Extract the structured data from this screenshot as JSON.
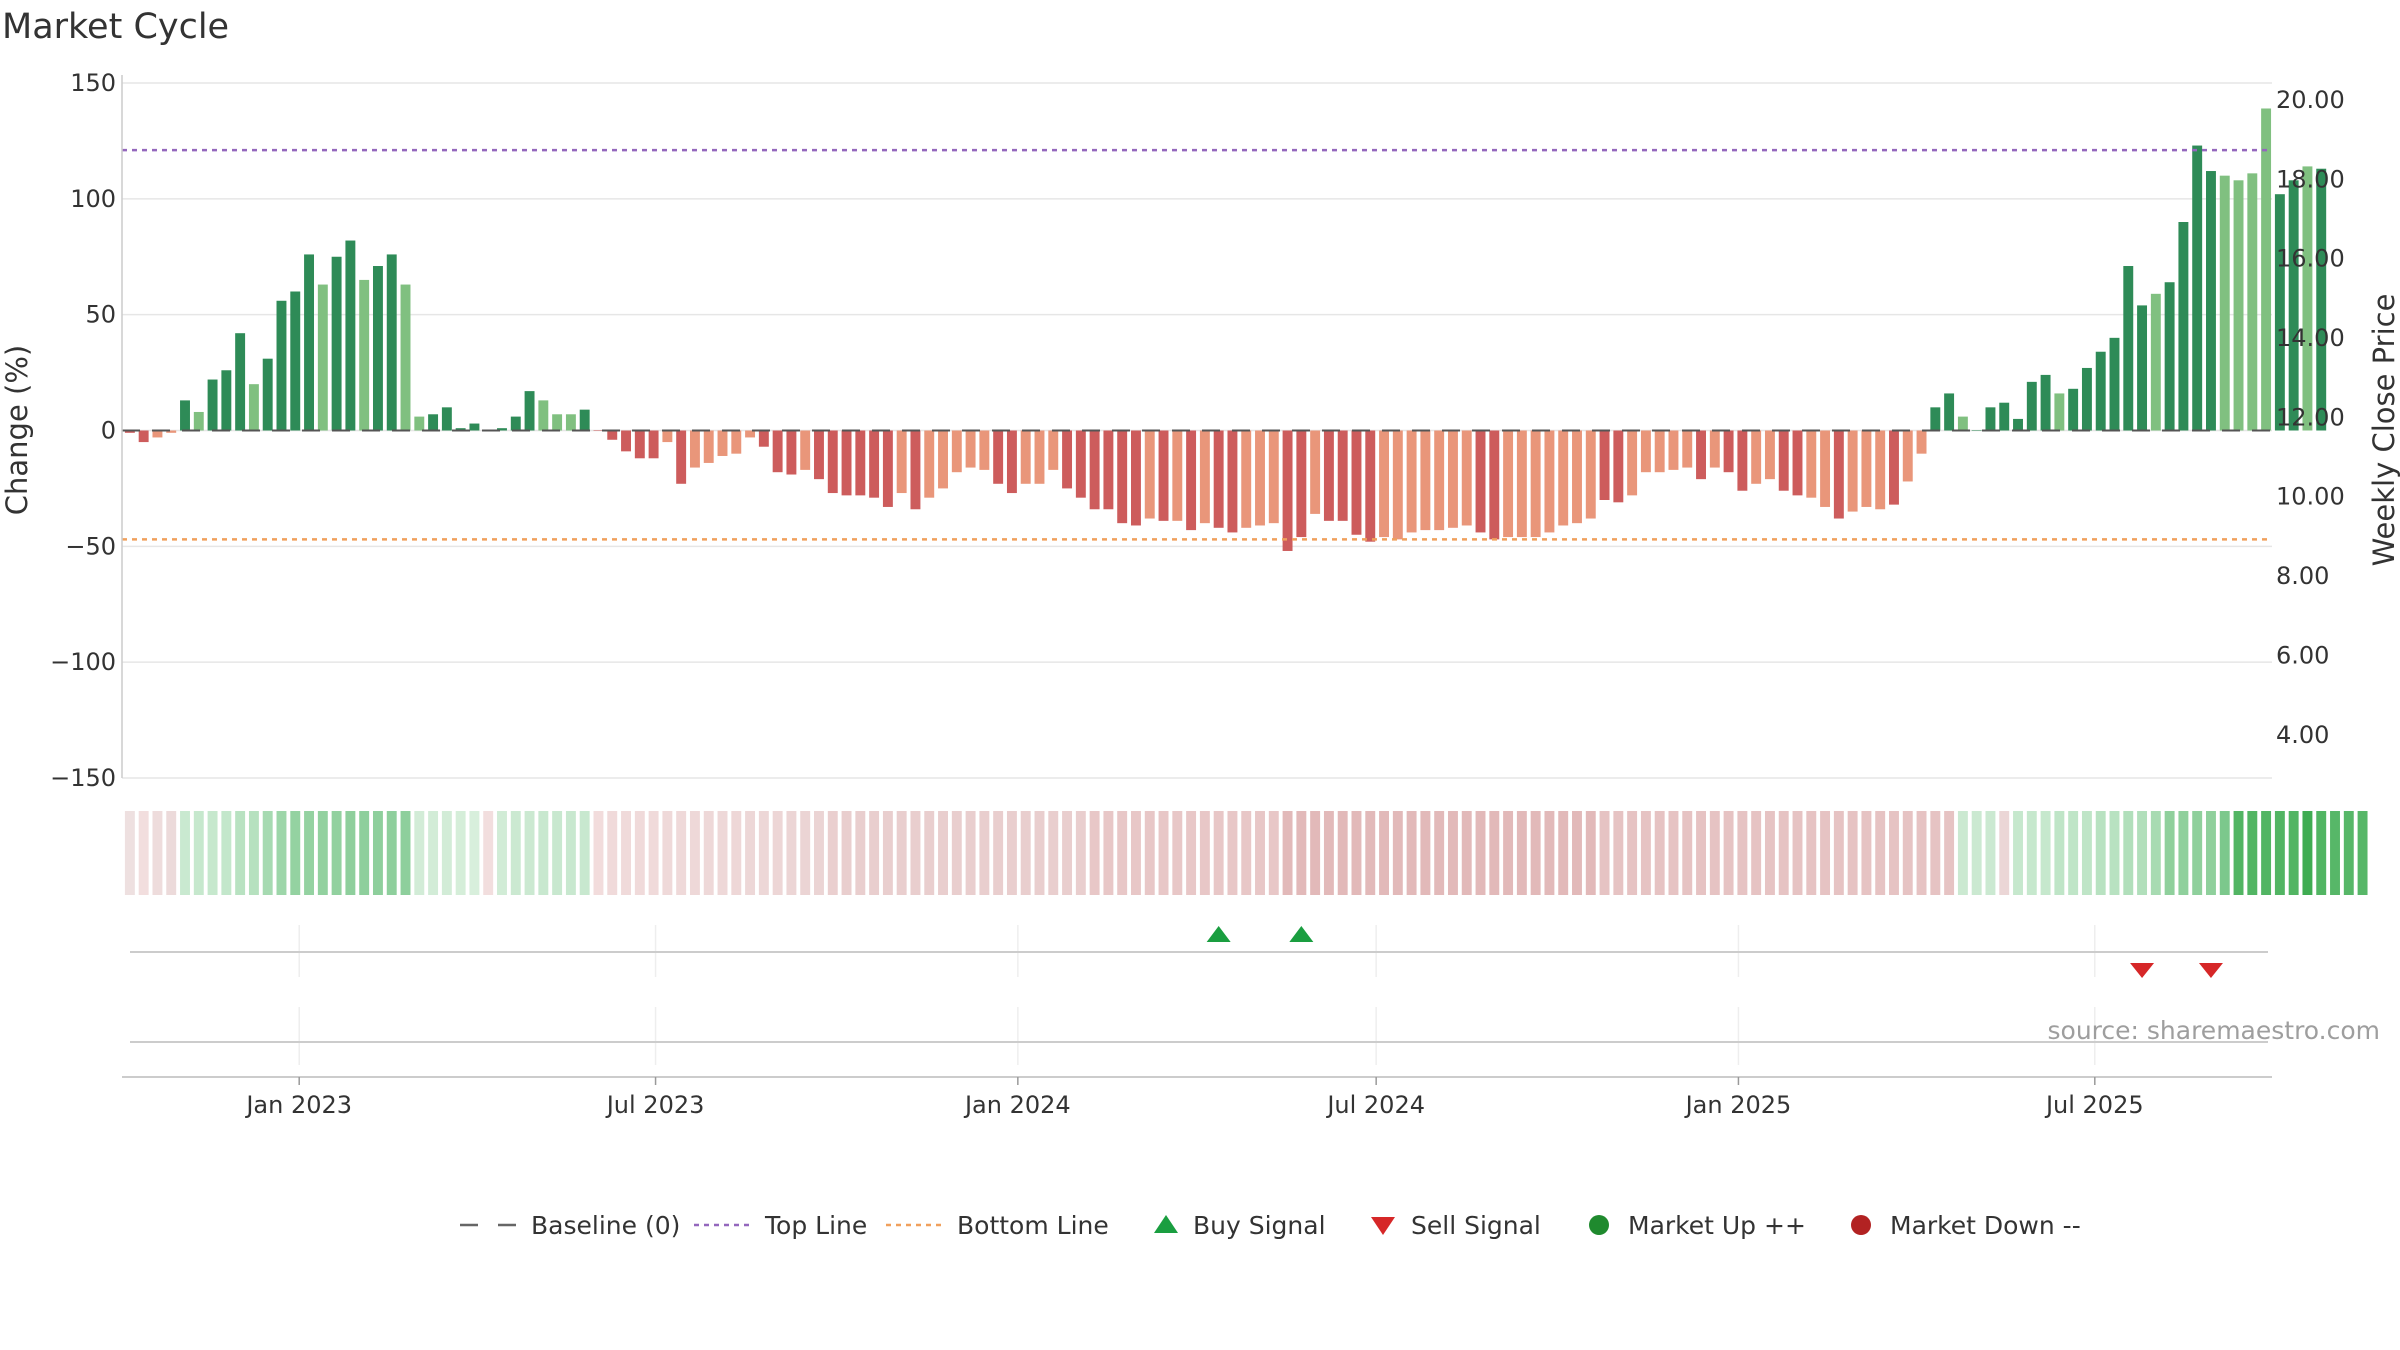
{
  "chart_data": {
    "type": "bar",
    "title": "Market Cycle",
    "ylabel": "Change (%)",
    "y2label": "Weekly Close Price",
    "ylim": [
      -150,
      150
    ],
    "y2lim": [
      2.91,
      20.43
    ],
    "yticks": [
      150,
      100,
      50,
      0,
      -50,
      -100,
      -150
    ],
    "ytick_labels": [
      "150",
      "100",
      "50",
      "0",
      "−50",
      "−100",
      "−150"
    ],
    "y2ticks": [
      20,
      18,
      16,
      14,
      12,
      10,
      8,
      6,
      4
    ],
    "y2tick_labels": [
      "20.00",
      "18.00",
      "16.00",
      "14.00",
      "12.00",
      "10.00",
      "8.00",
      "6.00",
      "4.00"
    ],
    "x_start": "2022-10-03",
    "x_end": "2025-09-29",
    "x_ticks": [
      {
        "date": "2023-01-01",
        "label": "Jan 2023"
      },
      {
        "date": "2023-07-01",
        "label": "Jul 2023"
      },
      {
        "date": "2024-01-01",
        "label": "Jan 2024"
      },
      {
        "date": "2024-07-01",
        "label": "Jul 2024"
      },
      {
        "date": "2025-01-01",
        "label": "Jan 2025"
      },
      {
        "date": "2025-07-01",
        "label": "Jul 2025"
      }
    ],
    "first_week": "2022-10-07",
    "top_line": 121,
    "bottom_line": -47,
    "baseline": 0,
    "values": [
      -1,
      -5,
      -3,
      -1,
      13,
      8,
      22,
      26,
      42,
      20,
      31,
      56,
      60,
      76,
      63,
      75,
      82,
      65,
      71,
      76,
      63,
      6,
      7,
      10,
      1,
      3,
      0,
      1,
      6,
      17,
      13,
      7,
      7,
      9,
      0,
      -4,
      -9,
      -12,
      -12,
      -5,
      -23,
      -16,
      -14,
      -11,
      -10,
      -3,
      -7,
      -18,
      -19,
      -17,
      -21,
      -27,
      -28,
      -28,
      -29,
      -33,
      -27,
      -34,
      -29,
      -25,
      -18,
      -16,
      -17,
      -23,
      -27,
      -23,
      -23,
      -17,
      -25,
      -29,
      -34,
      -34,
      -40,
      -41,
      -38,
      -39,
      -39,
      -43,
      -40,
      -42,
      -44,
      -42,
      -41,
      -40,
      -52,
      -46,
      -36,
      -39,
      -39,
      -45,
      -48,
      -46,
      -47,
      -44,
      -43,
      -43,
      -42,
      -41,
      -44,
      -47,
      -46,
      -46,
      -46,
      -44,
      -41,
      -40,
      -38,
      -30,
      -31,
      -28,
      -18,
      -18,
      -17,
      -16,
      -21,
      -16,
      -18,
      -26,
      -23,
      -21,
      -26,
      -28,
      -29,
      -33,
      -38,
      -35,
      -33,
      -34,
      -32,
      -22,
      -10,
      10,
      16,
      6,
      0,
      10,
      12,
      5,
      21,
      24,
      16,
      18,
      27,
      34,
      40,
      71,
      54,
      59,
      64,
      90,
      123,
      112,
      110,
      108,
      111,
      139,
      102,
      108,
      114,
      113
    ],
    "bar_styles": [
      "r",
      "r",
      "s",
      "s",
      "g",
      "l",
      "g",
      "g",
      "g",
      "l",
      "g",
      "g",
      "g",
      "g",
      "l",
      "g",
      "g",
      "l",
      "g",
      "g",
      "l",
      "l",
      "g",
      "g",
      "g",
      "g",
      "l",
      "g",
      "g",
      "g",
      "l",
      "l",
      "l",
      "g",
      "r",
      "r",
      "r",
      "r",
      "r",
      "s",
      "r",
      "s",
      "s",
      "s",
      "s",
      "s",
      "r",
      "r",
      "r",
      "s",
      "r",
      "r",
      "r",
      "r",
      "r",
      "r",
      "s",
      "r",
      "s",
      "s",
      "s",
      "s",
      "s",
      "r",
      "r",
      "s",
      "s",
      "s",
      "r",
      "r",
      "r",
      "r",
      "r",
      "r",
      "s",
      "r",
      "s",
      "r",
      "s",
      "r",
      "r",
      "s",
      "s",
      "s",
      "r",
      "r",
      "s",
      "r",
      "r",
      "r",
      "r",
      "s",
      "s",
      "s",
      "s",
      "s",
      "s",
      "s",
      "r",
      "r",
      "s",
      "s",
      "s",
      "s",
      "s",
      "s",
      "s",
      "r",
      "r",
      "s",
      "s",
      "s",
      "s",
      "s",
      "r",
      "s",
      "r",
      "r",
      "s",
      "s",
      "r",
      "r",
      "s",
      "s",
      "r",
      "s",
      "s",
      "s",
      "r",
      "s",
      "s",
      "g",
      "g",
      "l",
      "g",
      "g",
      "g",
      "g",
      "g",
      "g",
      "l",
      "g",
      "g",
      "g",
      "g",
      "g",
      "g",
      "l",
      "g",
      "g",
      "g",
      "g",
      "l",
      "l",
      "l",
      "l",
      "g",
      "g",
      "l",
      "g",
      "g",
      "l"
    ],
    "strip_colors": [
      "#eee0e0",
      "#f2dede",
      "#eedcdc",
      "#ecdada",
      "#c9e9d0",
      "#c6e8cd",
      "#c6e8cd",
      "#c3e7cb",
      "#b8e2c1",
      "#b6e1bf",
      "#a6dab1",
      "#9dd6a9",
      "#94d2a1",
      "#94d2a1",
      "#92d19f",
      "#92d19f",
      "#8ecf9c",
      "#8ecf9c",
      "#8ecf9c",
      "#8ecf9c",
      "#8ecf9c",
      "#d2ecd7",
      "#d2ecd7",
      "#d2ecd7",
      "#d5eed9",
      "#d8efdc",
      "#f2dede",
      "#d1ecd6",
      "#cbe9d1",
      "#cbe9d1",
      "#c8e8cf",
      "#c8e8cf",
      "#c8e8cf",
      "#c8e8cf",
      "#f2dcdc",
      "#f0dada",
      "#f0dada",
      "#f0dada",
      "#f0dada",
      "#efd9d9",
      "#efd9d9",
      "#eed8d8",
      "#eed8d8",
      "#eed8d8",
      "#eed7d7",
      "#edd7d7",
      "#edd7d7",
      "#edd6d6",
      "#ecd5d5",
      "#ebd4d4",
      "#ebd4d4",
      "#eacfcf",
      "#e9cece",
      "#e9cece",
      "#e9cece",
      "#e9cece",
      "#e9cece",
      "#e9cece",
      "#e9cece",
      "#e9cece",
      "#e9cece",
      "#e9cece",
      "#e9cece",
      "#e9cece",
      "#e9cece",
      "#e9cece",
      "#e9cece",
      "#e9cece",
      "#e9cece",
      "#e9cece",
      "#e8c7c7",
      "#e8c7c7",
      "#e8c7c7",
      "#e8c7c7",
      "#e8c7c7",
      "#e8c7c7",
      "#e8c7c7",
      "#e8c7c7",
      "#e8c7c7",
      "#e8c7c7",
      "#e8c7c7",
      "#e8c7c7",
      "#e8c7c7",
      "#e8c7c7",
      "#e2b9b9",
      "#e2b9b9",
      "#e2b9b9",
      "#e2b9b9",
      "#e2b9b9",
      "#e2b9b9",
      "#e2b9b9",
      "#e2b9b9",
      "#e2b9b9",
      "#e2b9b9",
      "#e2b9b9",
      "#e2b9b9",
      "#e2b9b9",
      "#e2b9b9",
      "#e2b9b9",
      "#e2b9b9",
      "#e2b9b9",
      "#e2b9b9",
      "#e2b9b9",
      "#e2b9b9",
      "#e2b9b9",
      "#e2b9b9",
      "#e2b9b9",
      "#e6c3c3",
      "#e6c3c3",
      "#e6c3c3",
      "#e6c3c3",
      "#e6c3c3",
      "#e6c3c3",
      "#e6c3c3",
      "#e6c3c3",
      "#e6c3c3",
      "#e6c3c3",
      "#e6c3c3",
      "#e6c3c3",
      "#e6c3c3",
      "#e6c3c3",
      "#e6c3c3",
      "#e6c3c3",
      "#e6c3c3",
      "#e6c3c3",
      "#e6c3c3",
      "#e6c3c3",
      "#e6c3c3",
      "#e6c3c3",
      "#e6c3c3",
      "#e6c3c3",
      "#e6c3c3",
      "#e6c3c3",
      "#cbe9d1",
      "#cbe9d1",
      "#cbe9d1",
      "#ebd6d6",
      "#c6e8cd",
      "#c6e8cd",
      "#c6e8cd",
      "#bfe5c7",
      "#bfe5c7",
      "#bfe5c7",
      "#b8e2c1",
      "#b8e2c1",
      "#b1dfbb",
      "#b1dfbb",
      "#a8dbb2",
      "#8fd09c",
      "#8fd09c",
      "#8fd09c",
      "#8fd09c",
      "#7cc88c",
      "#52b563",
      "#52b563",
      "#52b563",
      "#52b563",
      "#52b563",
      "#3fac52",
      "#52b563",
      "#57b768",
      "#57b768",
      "#57b768"
    ],
    "buy_signals": [
      "2024-04-12",
      "2024-05-24"
    ],
    "sell_signals": [
      "2025-07-25",
      "2025-08-29"
    ],
    "legend": [
      {
        "label": "Baseline (0)",
        "symbol": "dash-line",
        "color": "#666666"
      },
      {
        "label": "Top Line",
        "symbol": "dot-line",
        "color": "#9467bd"
      },
      {
        "label": "Bottom Line",
        "symbol": "dot-line",
        "color": "#f0a05c"
      },
      {
        "label": "Buy Signal",
        "symbol": "triangle-up",
        "color": "#1a9e40"
      },
      {
        "label": "Sell Signal",
        "symbol": "triangle-down",
        "color": "#d62728"
      },
      {
        "label": "Market Up ++",
        "symbol": "circle",
        "color": "#1f8a2e"
      },
      {
        "label": "Market Down --",
        "symbol": "circle",
        "color": "#b22222"
      }
    ],
    "source": "source: sharemaestro.com",
    "colors": {
      "bar_up_strong": "#2e8b57",
      "bar_up_light": "#80c080",
      "bar_down_strong": "#cd5c5c",
      "bar_down_light": "#e9967a",
      "top_line": "#9467bd",
      "bottom_line": "#f0a05c",
      "buy": "#1a9e40",
      "sell": "#d62728"
    }
  }
}
